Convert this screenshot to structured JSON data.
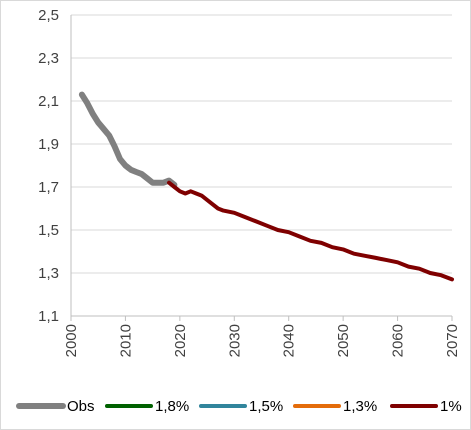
{
  "chart_data": {
    "type": "line",
    "title": "",
    "xlabel": "",
    "ylabel": "",
    "xlim": [
      2000,
      2070
    ],
    "ylim": [
      1.1,
      2.5
    ],
    "x_ticks": [
      "2000",
      "2010",
      "2020",
      "2030",
      "2040",
      "2050",
      "2060",
      "2070"
    ],
    "y_ticks": [
      "1,1",
      "1,3",
      "1,5",
      "1,7",
      "1,9",
      "2,1",
      "2,3",
      "2,5"
    ],
    "grid": "horizontal",
    "legend_position": "bottom",
    "series": [
      {
        "name": "Obs",
        "color": "#808080",
        "x": [
          2002,
          2003,
          2004,
          2005,
          2006,
          2007,
          2008,
          2009,
          2010,
          2011,
          2012,
          2013,
          2014,
          2015,
          2016,
          2017,
          2018,
          2019
        ],
        "y": [
          2.13,
          2.09,
          2.04,
          2.0,
          1.97,
          1.94,
          1.89,
          1.83,
          1.8,
          1.78,
          1.77,
          1.76,
          1.74,
          1.72,
          1.72,
          1.72,
          1.73,
          1.71
        ]
      },
      {
        "name": "1,8%",
        "color": "#006100",
        "x": [
          2018,
          2070
        ],
        "y": [
          1.72,
          1.27
        ]
      },
      {
        "name": "1,5%",
        "color": "#31859c",
        "x": [
          2018,
          2070
        ],
        "y": [
          1.72,
          1.27
        ]
      },
      {
        "name": "1,3%",
        "color": "#e46c0a",
        "x": [
          2018,
          2070
        ],
        "y": [
          1.72,
          1.27
        ]
      },
      {
        "name": "1%",
        "color": "#7f0000",
        "x": [
          2018,
          2019,
          2020,
          2021,
          2022,
          2023,
          2024,
          2025,
          2026,
          2027,
          2028,
          2030,
          2032,
          2034,
          2036,
          2038,
          2040,
          2042,
          2044,
          2046,
          2048,
          2050,
          2052,
          2054,
          2056,
          2058,
          2060,
          2062,
          2064,
          2066,
          2068,
          2070
        ],
        "y": [
          1.72,
          1.7,
          1.68,
          1.67,
          1.68,
          1.67,
          1.66,
          1.64,
          1.62,
          1.6,
          1.59,
          1.58,
          1.56,
          1.54,
          1.52,
          1.5,
          1.49,
          1.47,
          1.45,
          1.44,
          1.42,
          1.41,
          1.39,
          1.38,
          1.37,
          1.36,
          1.35,
          1.33,
          1.32,
          1.3,
          1.29,
          1.27
        ]
      }
    ]
  }
}
